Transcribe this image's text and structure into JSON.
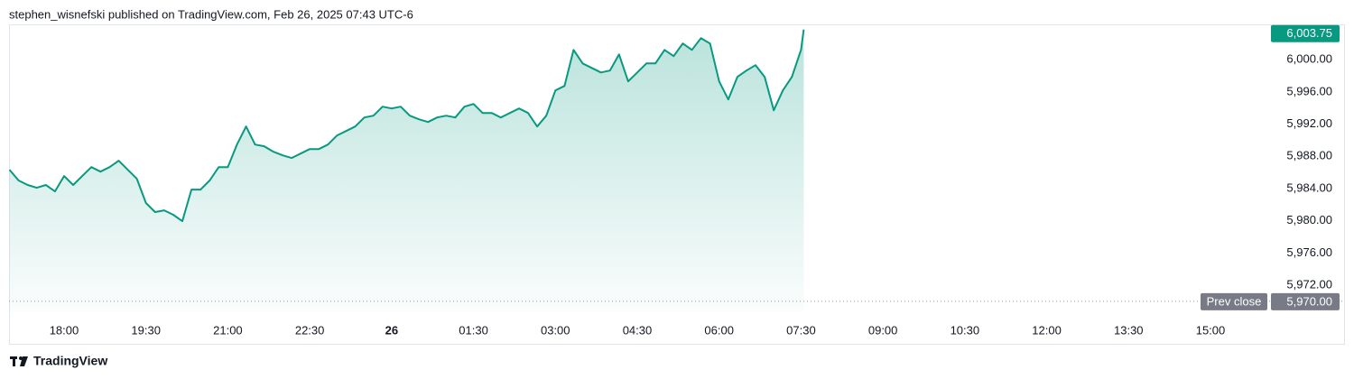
{
  "header": "stephen_wisnefski published on TradingView.com, Feb 26, 2025 07:43 UTC-6",
  "footer": "TradingView",
  "chart_data": {
    "type": "area",
    "color": "#089981",
    "x": [
      1020,
      1030,
      1040,
      1050,
      1060,
      1070,
      1080,
      1090,
      1100,
      1110,
      1120,
      1130,
      1140,
      1150,
      1160,
      1170,
      1180,
      1190,
      1200,
      1210,
      1220,
      1230,
      1240,
      1250,
      1260,
      1270,
      1280,
      1290,
      1300,
      1310,
      1320,
      1330,
      1340,
      1350,
      1360,
      1370,
      1380,
      1390,
      1400,
      1410,
      1420,
      1430,
      1440,
      1450,
      1460,
      1470,
      1480,
      1490,
      1500,
      1510,
      1520,
      1530,
      1540,
      1550,
      1560,
      1570,
      1580,
      1590,
      1600,
      1610,
      1620,
      1630,
      1640,
      1650,
      1660,
      1670,
      1680,
      1690,
      1700,
      1710,
      1720,
      1730,
      1740,
      1750,
      1760,
      1770,
      1780,
      1790,
      1800,
      1810,
      1820,
      1830,
      1840,
      1850,
      1860,
      1870,
      1880,
      1890,
      1893
    ],
    "values": [
      5986.34,
      5985.0,
      5984.44,
      5984.1,
      5984.44,
      5983.65,
      5985.55,
      5984.44,
      5985.55,
      5986.67,
      5986.1,
      5986.67,
      5987.46,
      5986.34,
      5985.22,
      5982.2,
      5981.08,
      5981.3,
      5980.74,
      5979.95,
      5983.87,
      5983.87,
      5985.0,
      5986.67,
      5986.67,
      5989.47,
      5991.71,
      5989.47,
      5989.25,
      5988.58,
      5988.13,
      5987.8,
      5988.35,
      5988.91,
      5988.91,
      5989.47,
      5990.6,
      5991.15,
      5991.71,
      5992.83,
      5993.06,
      5994.18,
      5993.95,
      5994.18,
      5993.06,
      5992.61,
      5992.27,
      5992.83,
      5993.06,
      5992.83,
      5994.18,
      5994.51,
      5993.39,
      5993.39,
      5992.83,
      5993.39,
      5993.95,
      5993.39,
      5991.71,
      5993.06,
      5996.19,
      5996.75,
      6001.23,
      5999.55,
      5998.99,
      5998.43,
      5998.66,
      6000.67,
      5997.31,
      5998.43,
      5999.55,
      5999.55,
      6001.23,
      6000.45,
      6002.02,
      6001.23,
      6002.69,
      6002.02,
      5997.31,
      5995.07,
      5997.87,
      5998.66,
      5999.33,
      5997.87,
      5993.73,
      5996.19,
      5997.87,
      6001.23,
      6003.75
    ],
    "last_price_label": "6,003.75",
    "prev_close": {
      "label": "Prev close",
      "value": 5970,
      "value_label": "5,970.00"
    },
    "xlim": [
      1019.5,
      2403.5
    ],
    "ylim": [
      5968.75,
      6004.4
    ],
    "xticks": [
      {
        "value": 1080,
        "label": "18:00"
      },
      {
        "value": 1170,
        "label": "19:30"
      },
      {
        "value": 1260,
        "label": "21:00"
      },
      {
        "value": 1350,
        "label": "22:30"
      },
      {
        "value": 1440,
        "label": "26"
      },
      {
        "value": 1530,
        "label": "01:30"
      },
      {
        "value": 1620,
        "label": "03:00"
      },
      {
        "value": 1710,
        "label": "04:30"
      },
      {
        "value": 1800,
        "label": "06:00"
      },
      {
        "value": 1890,
        "label": "07:30"
      },
      {
        "value": 1980,
        "label": "09:00"
      },
      {
        "value": 2070,
        "label": "10:30"
      },
      {
        "value": 2160,
        "label": "12:00"
      },
      {
        "value": 2250,
        "label": "13:30"
      },
      {
        "value": 2340,
        "label": "15:00"
      }
    ],
    "yticks": [
      {
        "value": 5972,
        "label": "5,972.00"
      },
      {
        "value": 5976,
        "label": "5,976.00"
      },
      {
        "value": 5980,
        "label": "5,980.00"
      },
      {
        "value": 5984,
        "label": "5,984.00"
      },
      {
        "value": 5988,
        "label": "5,988.00"
      },
      {
        "value": 5992,
        "label": "5,992.00"
      },
      {
        "value": 5996,
        "label": "5,996.00"
      },
      {
        "value": 6000,
        "label": "6,000.00"
      }
    ]
  }
}
